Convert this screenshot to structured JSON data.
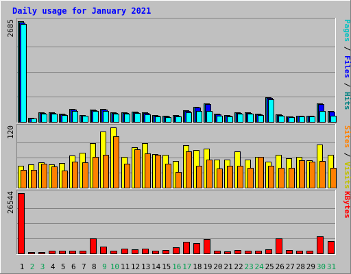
{
  "chart_data": {
    "type": "bar",
    "title": "Daily usage for January 2021",
    "categories": [
      "1",
      "2",
      "3",
      "4",
      "5",
      "6",
      "7",
      "8",
      "9",
      "10",
      "11",
      "12",
      "13",
      "14",
      "15",
      "16",
      "17",
      "18",
      "19",
      "20",
      "21",
      "22",
      "23",
      "24",
      "25",
      "26",
      "27",
      "28",
      "29",
      "30",
      "31"
    ],
    "weekend_days": [
      "2",
      "3",
      "9",
      "10",
      "16",
      "17",
      "23",
      "24",
      "30",
      "31"
    ],
    "panels": [
      {
        "id": "hits",
        "ymax_label": "2685",
        "ylim": [
          0,
          2685
        ],
        "legend": [
          "Pages",
          "Files",
          "Hits"
        ],
        "series": [
          {
            "name": "Hits",
            "color": "#008080",
            "values": [
              2685,
              112,
              255,
              255,
              219,
              352,
              182,
              332,
              349,
              258,
              255,
              283,
              255,
              182,
              158,
              184,
              309,
              409,
              497,
              212,
              182,
              261,
              261,
              218,
              663,
              200,
              154,
              170,
              170,
              497,
              293
            ]
          },
          {
            "name": "Files",
            "color": "#0000ff",
            "values": [
              2650,
              92,
              235,
              235,
              200,
              325,
              170,
              314,
              320,
              235,
              235,
              255,
              230,
              168,
              142,
              168,
              285,
              382,
              473,
              192,
              168,
              242,
              242,
              200,
              632,
              182,
              140,
              156,
              156,
              473,
              280
            ]
          },
          {
            "name": "Pages",
            "color": "#00ffff",
            "values": [
              2614,
              85,
              212,
              212,
              185,
              300,
              158,
              285,
              292,
              212,
              212,
              230,
              210,
              152,
              128,
              152,
              260,
              292,
              295,
              172,
              152,
              220,
              220,
              182,
              600,
              165,
              128,
              140,
              140,
              300,
              160
            ]
          }
        ]
      },
      {
        "id": "visits",
        "ymax_label": "120",
        "ylim": [
          0,
          120
        ],
        "legend": [
          "Sites",
          "Visits"
        ],
        "series": [
          {
            "name": "Visits",
            "color": "#ffff00",
            "values": [
              44,
              46,
              50,
              47,
              49,
              64,
              70,
              88,
              112,
              120,
              62,
              80,
              88,
              67,
              66,
              53,
              84,
              75,
              78,
              56,
              56,
              72,
              56,
              62,
              52,
              65,
              59,
              62,
              55,
              86,
              66
            ]
          },
          {
            "name": "Sites",
            "color": "#ff8000",
            "values": [
              36,
              35,
              48,
              42,
              34,
              52,
              50,
              61,
              66,
              102,
              48,
              76,
              68,
              65,
              48,
              31,
              72,
              43,
              56,
              38,
              43,
              43,
              40,
              62,
              44,
              39,
              39,
              55,
              52,
              53,
              40
            ]
          }
        ]
      },
      {
        "id": "kbytes",
        "ymax_label": "26544",
        "ylim": [
          0,
          26544
        ],
        "legend": [
          "KBytes"
        ],
        "series": [
          {
            "name": "KBytes",
            "color": "#ff0000",
            "values": [
              26544,
              620,
              710,
              1120,
              1120,
              1120,
              1200,
              6560,
              2880,
              1120,
              2080,
              1920,
              2080,
              1280,
              1600,
              2690,
              5120,
              4480,
              6380,
              1120,
              800,
              1600,
              1120,
              1120,
              1910,
              6500,
              1600,
              1120,
              1280,
              7500,
              5520
            ]
          }
        ]
      }
    ]
  }
}
